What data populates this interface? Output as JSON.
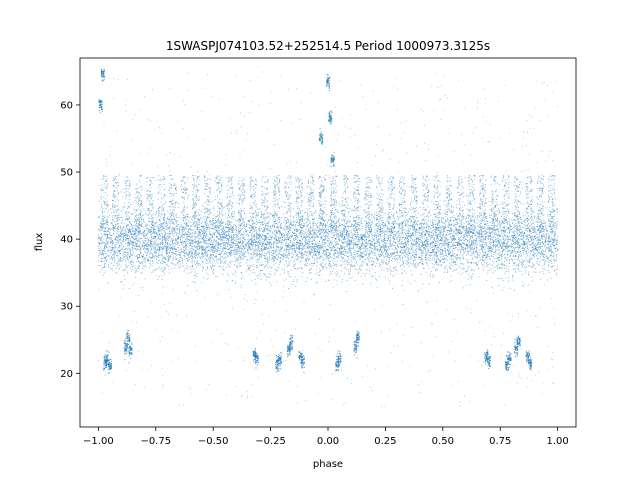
{
  "chart_data": {
    "type": "scatter",
    "title": "1SWASPJ074103.52+252514.5 Period 1000973.3125s",
    "xlabel": "phase",
    "ylabel": "flux",
    "xlim": [
      -1.08,
      1.08
    ],
    "ylim": [
      12.0,
      67.0
    ],
    "x_ticks": [
      -1.0,
      -0.75,
      -0.5,
      -0.25,
      0.0,
      0.25,
      0.5,
      0.75,
      1.0
    ],
    "x_tick_labels": [
      "−1.00",
      "−0.75",
      "−0.50",
      "−0.25",
      "0.00",
      "0.25",
      "0.50",
      "0.75",
      "1.00"
    ],
    "y_ticks": [
      20,
      30,
      40,
      50,
      60
    ],
    "y_tick_labels": [
      "20",
      "30",
      "40",
      "50",
      "60"
    ],
    "grid": false,
    "legend": "none",
    "marker_color": "#1f77b4",
    "series": [
      {
        "values_description_note": "",
        "points": [
          {
            "x": -0.97,
            "y": 21.5
          },
          {
            "x": -0.96,
            "y": 22.0
          },
          {
            "x": -0.95,
            "y": 21.2
          },
          {
            "x": -0.88,
            "y": 24.0
          },
          {
            "x": -0.87,
            "y": 25.2
          },
          {
            "x": -0.86,
            "y": 23.4
          },
          {
            "x": -0.32,
            "y": 22.8
          },
          {
            "x": -0.31,
            "y": 22.2
          },
          {
            "x": -0.22,
            "y": 21.4
          },
          {
            "x": -0.21,
            "y": 22.0
          },
          {
            "x": -0.17,
            "y": 23.5
          },
          {
            "x": -0.16,
            "y": 24.6
          },
          {
            "x": -0.12,
            "y": 22.5
          },
          {
            "x": -0.11,
            "y": 21.6
          },
          {
            "x": 0.04,
            "y": 21.3
          },
          {
            "x": 0.05,
            "y": 22.1
          },
          {
            "x": 0.12,
            "y": 24.0
          },
          {
            "x": 0.13,
            "y": 25.4
          },
          {
            "x": 0.69,
            "y": 22.6
          },
          {
            "x": 0.7,
            "y": 22.0
          },
          {
            "x": 0.78,
            "y": 21.2
          },
          {
            "x": 0.79,
            "y": 22.0
          },
          {
            "x": 0.82,
            "y": 23.6
          },
          {
            "x": 0.83,
            "y": 24.8
          },
          {
            "x": 0.87,
            "y": 22.4
          },
          {
            "x": 0.88,
            "y": 21.5
          },
          {
            "x": -0.99,
            "y": 60.0
          },
          {
            "x": -0.98,
            "y": 64.5
          },
          {
            "x": 0.0,
            "y": 63.5
          },
          {
            "x": 0.01,
            "y": 58.0
          },
          {
            "x": -0.03,
            "y": 55.0
          },
          {
            "x": 0.02,
            "y": 52.0
          }
        ]
      }
    ]
  }
}
